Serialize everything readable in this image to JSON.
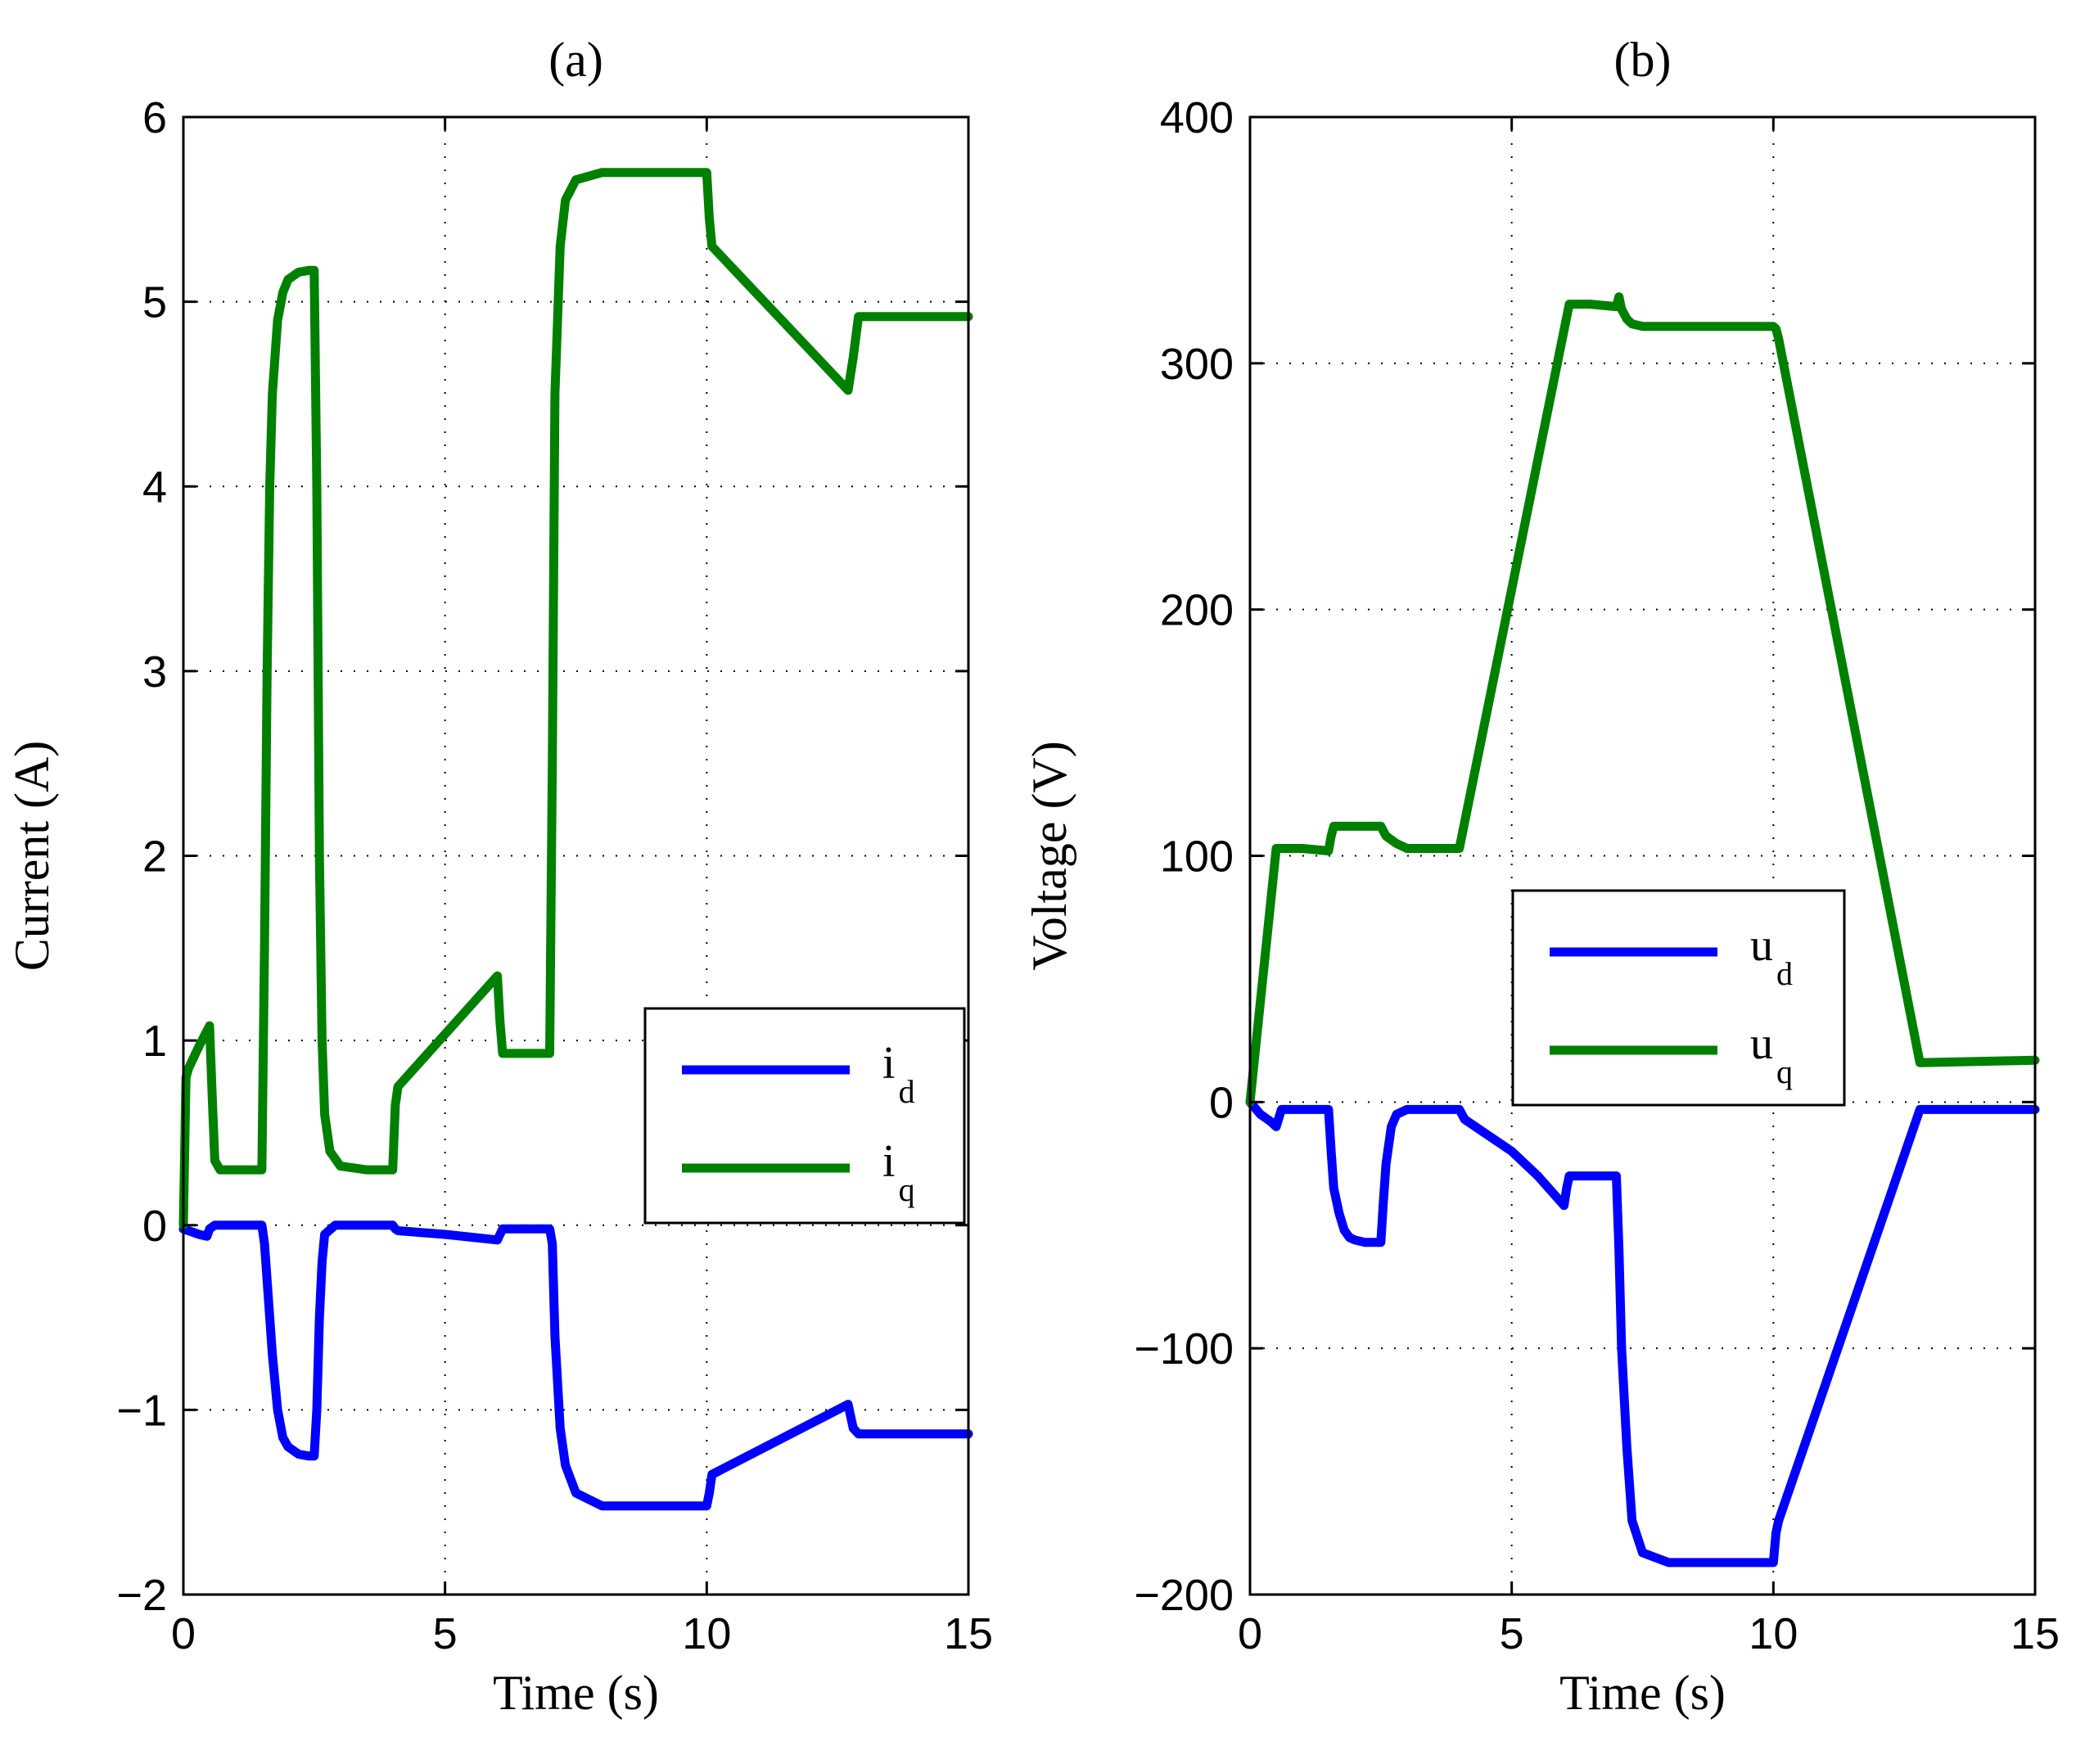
{
  "chart_data": [
    {
      "type": "line",
      "title": "(a)",
      "xlabel": "Time (s)",
      "ylabel": "Current (A)",
      "xlim": [
        0,
        15
      ],
      "ylim": [
        -2,
        6
      ],
      "xticks": [
        0,
        5,
        10,
        15
      ],
      "yticks": [
        -2,
        -1,
        0,
        1,
        2,
        3,
        4,
        5,
        6
      ],
      "xtick_labels": [
        "0",
        "5",
        "10",
        "15"
      ],
      "ytick_labels": [
        "−2",
        "−1",
        "0",
        "1",
        "2",
        "3",
        "4",
        "5",
        "6"
      ],
      "grid": true,
      "legend_position": "middle-right",
      "series": [
        {
          "name": "i",
          "subscript": "d",
          "color": "#0000ff",
          "x": [
            0,
            0.3,
            0.45,
            0.5,
            0.6,
            1.0,
            1.5,
            1.55,
            1.6,
            1.7,
            1.8,
            1.9,
            2.0,
            2.2,
            2.4,
            2.5,
            2.55,
            2.6,
            2.65,
            2.7,
            2.9,
            3.5,
            4.0,
            4.05,
            4.1,
            5.0,
            6.0,
            6.1,
            6.3,
            7.0,
            7.05,
            7.1,
            7.2,
            7.3,
            7.5,
            8.0,
            9.0,
            10.0,
            10.05,
            10.1,
            12.7,
            12.8,
            12.9,
            15.0
          ],
          "y": [
            -0.02,
            -0.05,
            -0.06,
            -0.02,
            0.0,
            0.0,
            0.0,
            -0.1,
            -0.3,
            -0.7,
            -1.0,
            -1.15,
            -1.2,
            -1.24,
            -1.25,
            -1.25,
            -1.0,
            -0.5,
            -0.2,
            -0.05,
            0.0,
            0.0,
            0.0,
            -0.02,
            -0.03,
            -0.05,
            -0.08,
            -0.02,
            -0.02,
            -0.02,
            -0.1,
            -0.6,
            -1.1,
            -1.3,
            -1.45,
            -1.52,
            -1.52,
            -1.52,
            -1.45,
            -1.35,
            -0.97,
            -1.1,
            -1.13,
            -1.13
          ]
        },
        {
          "name": "i",
          "subscript": "q",
          "color": "#008000",
          "x": [
            0,
            0.05,
            0.1,
            0.3,
            0.5,
            0.55,
            0.6,
            0.7,
            1.0,
            1.5,
            1.55,
            1.6,
            1.65,
            1.7,
            1.8,
            1.9,
            2.0,
            2.2,
            2.4,
            2.5,
            2.55,
            2.6,
            2.65,
            2.7,
            2.8,
            3.0,
            3.5,
            4.0,
            4.05,
            4.1,
            6.0,
            6.05,
            6.1,
            7.0,
            7.05,
            7.1,
            7.2,
            7.3,
            7.5,
            8.0,
            9.0,
            10.0,
            10.05,
            10.1,
            12.7,
            12.8,
            12.9,
            15.0
          ],
          "y": [
            0.0,
            0.8,
            0.85,
            0.97,
            1.08,
            0.7,
            0.35,
            0.3,
            0.3,
            0.3,
            1.5,
            3.0,
            4.0,
            4.5,
            4.9,
            5.05,
            5.12,
            5.16,
            5.17,
            5.17,
            4.0,
            2.0,
            1.0,
            0.6,
            0.4,
            0.32,
            0.3,
            0.3,
            0.65,
            0.75,
            1.35,
            1.1,
            0.93,
            0.93,
            2.5,
            4.5,
            5.3,
            5.55,
            5.66,
            5.7,
            5.7,
            5.7,
            5.45,
            5.3,
            4.52,
            4.7,
            4.92,
            4.92
          ]
        }
      ]
    },
    {
      "type": "line",
      "title": "(b)",
      "xlabel": "Time (s)",
      "ylabel": "Voltage (V)",
      "xlim": [
        0,
        15
      ],
      "ylim": [
        -200,
        400
      ],
      "xticks": [
        0,
        5,
        10,
        15
      ],
      "yticks": [
        -200,
        -100,
        0,
        100,
        200,
        300,
        400
      ],
      "xtick_labels": [
        "0",
        "5",
        "10",
        "15"
      ],
      "ytick_labels": [
        "−200",
        "−100",
        "0",
        "100",
        "200",
        "300",
        "400"
      ],
      "grid": true,
      "legend_position": "center-right",
      "series": [
        {
          "name": "u",
          "subscript": "d",
          "color": "#0000ff",
          "x": [
            0,
            0.2,
            0.4,
            0.5,
            0.6,
            1.0,
            1.5,
            1.55,
            1.6,
            1.7,
            1.8,
            1.9,
            2.0,
            2.2,
            2.5,
            2.55,
            2.6,
            2.7,
            2.8,
            3.0,
            3.5,
            4.0,
            4.1,
            5.0,
            5.5,
            6.0,
            6.05,
            6.1,
            7.0,
            7.05,
            7.1,
            7.2,
            7.3,
            7.5,
            8.0,
            9.0,
            10.0,
            10.05,
            10.1,
            12.8,
            15.0
          ],
          "y": [
            0,
            -5,
            -8,
            -10,
            -3,
            -3,
            -3,
            -20,
            -35,
            -45,
            -52,
            -55,
            -56,
            -57,
            -57,
            -40,
            -25,
            -10,
            -5,
            -3,
            -3,
            -3,
            -7,
            -20,
            -30,
            -42,
            -35,
            -30,
            -30,
            -60,
            -100,
            -140,
            -170,
            -183,
            -187,
            -187,
            -187,
            -175,
            -170,
            -3,
            -3
          ]
        },
        {
          "name": "u",
          "subscript": "q",
          "color": "#008000",
          "x": [
            0,
            0.5,
            1.0,
            1.5,
            1.55,
            1.6,
            2.0,
            2.5,
            2.6,
            2.8,
            3.0,
            3.5,
            4.0,
            6.1,
            6.5,
            7.0,
            7.05,
            7.1,
            7.2,
            7.3,
            7.5,
            8.0,
            9.0,
            10.0,
            10.05,
            10.1,
            12.8,
            15.0
          ],
          "y": [
            0,
            103,
            103,
            102,
            108,
            112,
            112,
            112,
            108,
            105,
            103,
            103,
            103,
            324,
            324,
            323,
            327,
            322,
            318,
            316,
            315,
            315,
            315,
            315,
            314,
            310,
            16,
            17
          ]
        }
      ]
    }
  ]
}
